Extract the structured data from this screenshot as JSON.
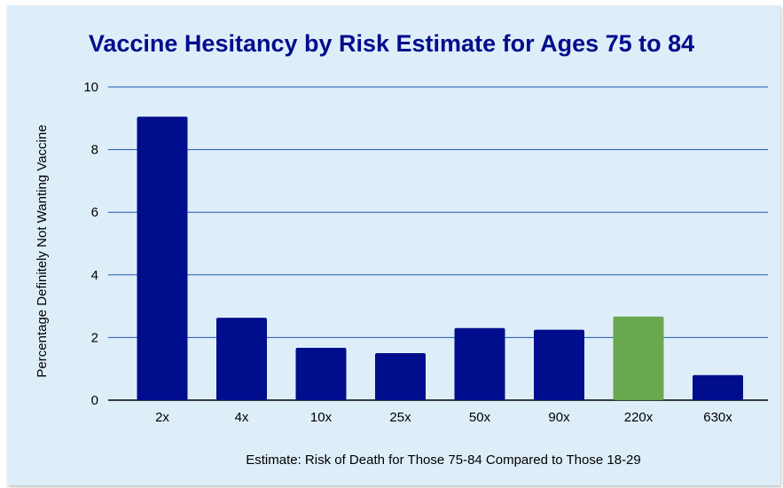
{
  "chart_data": {
    "type": "bar",
    "title": "Vaccine Hesitancy by Risk Estimate for Ages 75 to 84",
    "xlabel": "Estimate: Risk of Death for Those 75-84 Compared to Those 18-29",
    "ylabel": "Percentage Definitely Not Wanting Vaccine",
    "categories": [
      "2x",
      "4x",
      "10x",
      "25x",
      "50x",
      "90x",
      "220x",
      "630x"
    ],
    "values": [
      9.05,
      2.63,
      1.67,
      1.5,
      2.3,
      2.25,
      2.67,
      0.8
    ],
    "bar_colors": [
      "#000d8c",
      "#000d8c",
      "#000d8c",
      "#000d8c",
      "#000d8c",
      "#000d8c",
      "#6aa84f",
      "#000d8c"
    ],
    "ylim": [
      0,
      10
    ],
    "yticks": [
      0,
      2,
      4,
      6,
      8,
      10
    ],
    "grid": true,
    "grid_color": "#1f55b5",
    "background_color": "#deeef9"
  }
}
